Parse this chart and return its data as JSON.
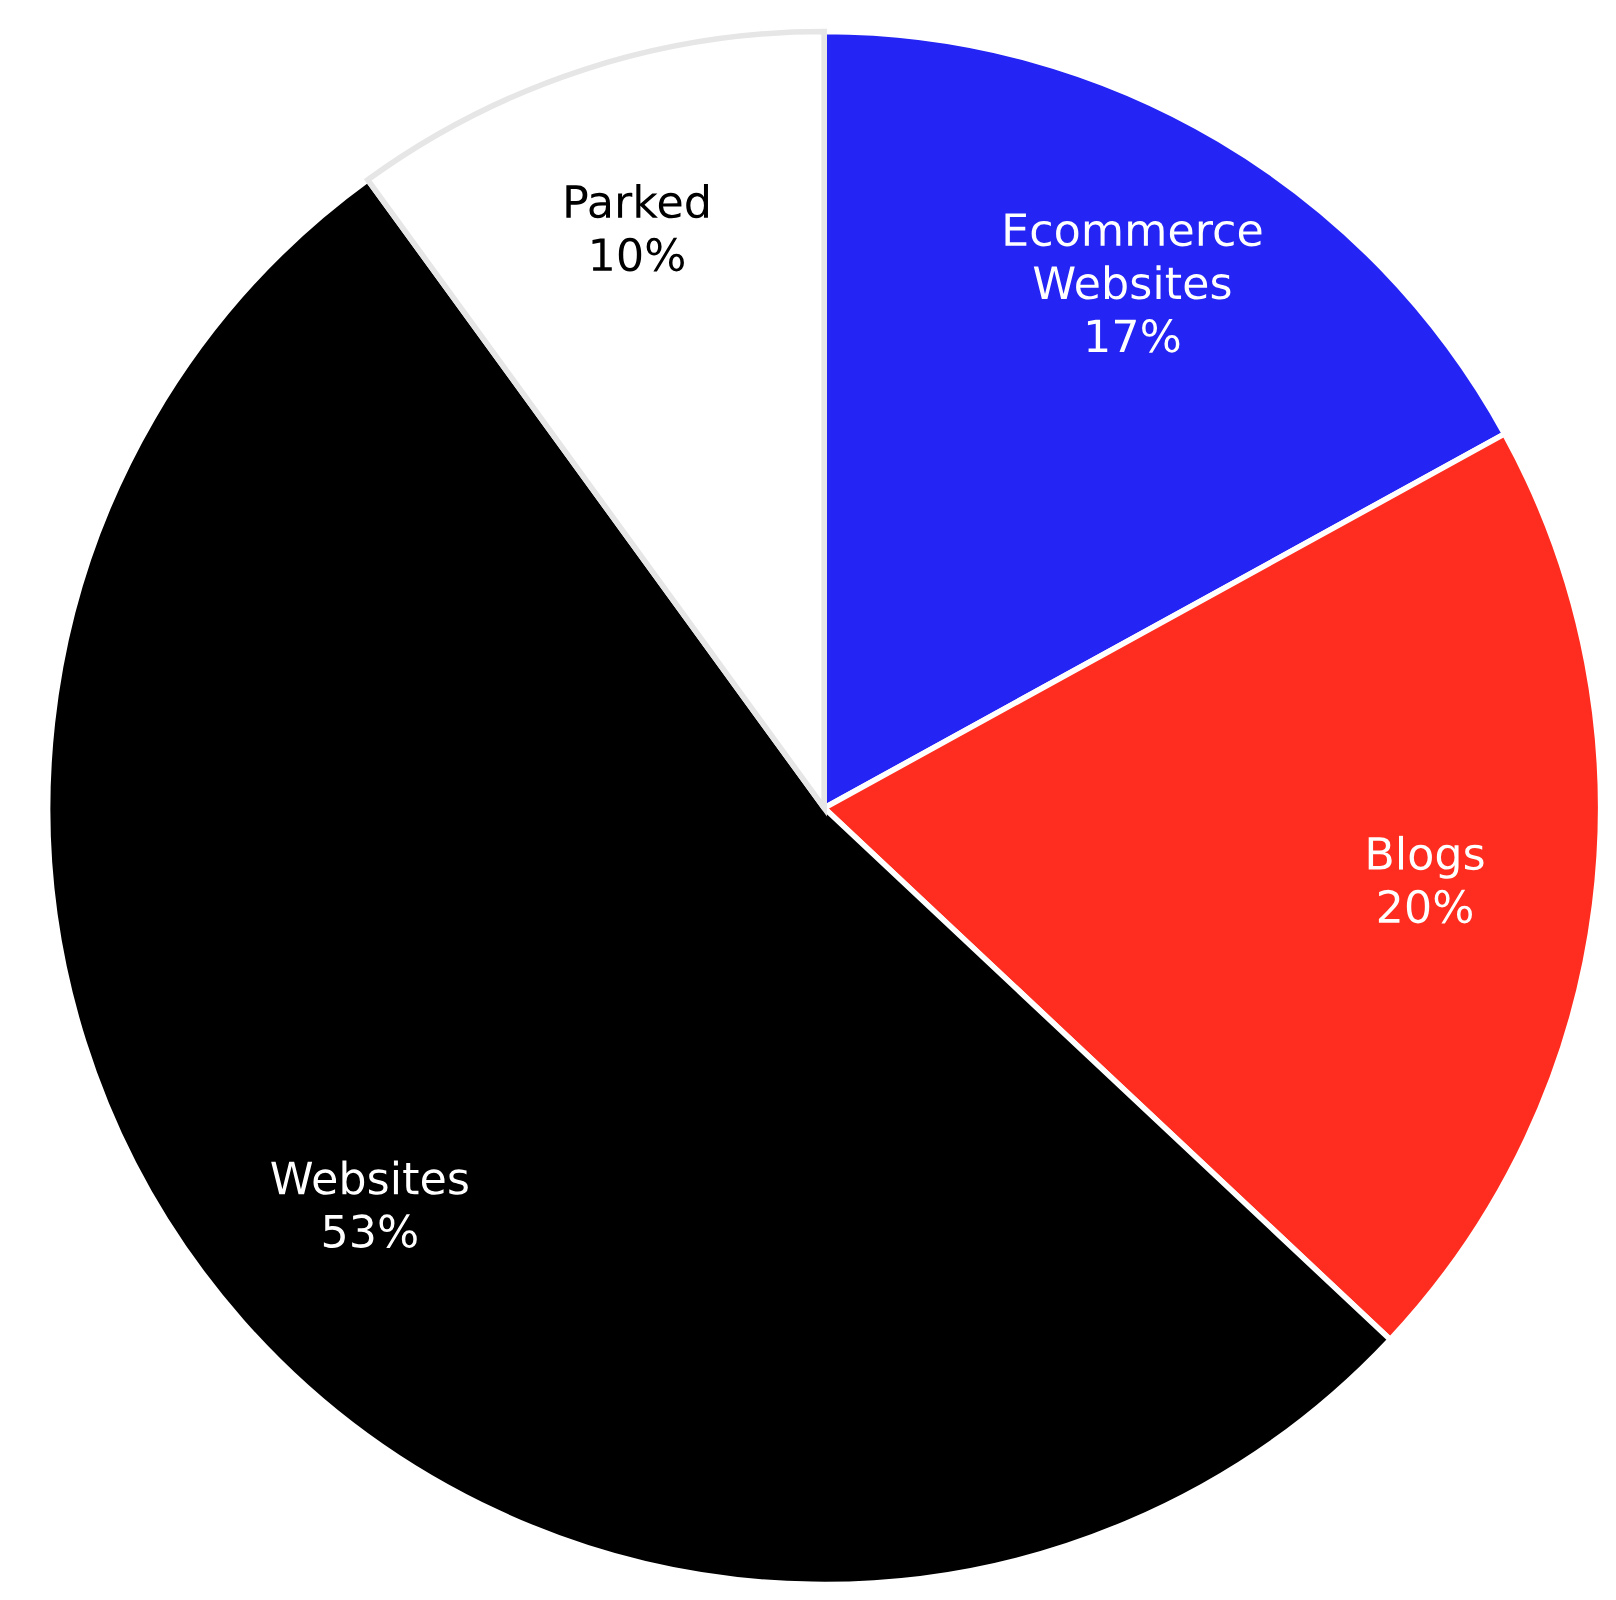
{
  "chart_data": {
    "type": "pie",
    "categories": [
      "Ecommerce\nWebsites",
      "Blogs",
      "Websites",
      "Parked"
    ],
    "values": [
      17,
      20,
      53,
      10
    ],
    "colors": [
      "#2424f4",
      "#ff2d1f",
      "#000000",
      "#ffffff"
    ],
    "value_labels": [
      "17%",
      "20%",
      "53%",
      "10%"
    ]
  }
}
